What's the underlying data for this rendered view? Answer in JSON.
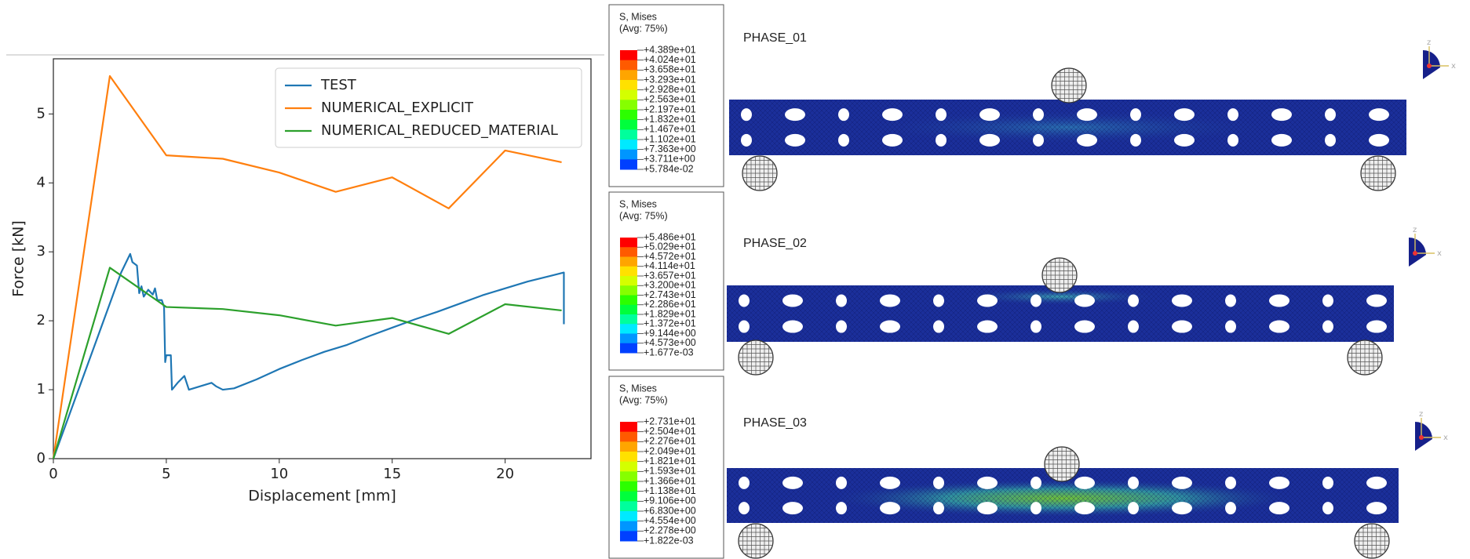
{
  "chart_data": {
    "type": "line",
    "xlabel": "Displacement [mm]",
    "ylabel": "Force [kN]",
    "xlim": [
      0,
      23.8
    ],
    "ylim": [
      0,
      5.8
    ],
    "xticks": [
      0,
      5,
      10,
      15,
      20
    ],
    "yticks": [
      0,
      1,
      2,
      3,
      4,
      5
    ],
    "grid": false,
    "legend": "upper-right",
    "series": [
      {
        "name": "TEST",
        "color": "#1f77b4",
        "x": [
          0,
          1,
          2,
          3,
          3.4,
          3.5,
          3.7,
          3.8,
          3.9,
          4,
          4.2,
          4.4,
          4.5,
          4.6,
          4.8,
          4.9,
          4.95,
          5,
          5.2,
          5.25,
          5.5,
          5.8,
          6,
          6.5,
          7,
          7.2,
          7.5,
          8,
          9,
          10,
          11,
          12,
          13,
          14,
          15,
          16,
          17,
          18,
          19,
          20,
          21,
          22,
          22.6,
          22.6
        ],
        "values": [
          0,
          0.9,
          1.8,
          2.7,
          2.97,
          2.85,
          2.8,
          2.4,
          2.5,
          2.35,
          2.45,
          2.38,
          2.47,
          2.3,
          2.3,
          2.2,
          1.4,
          1.5,
          1.5,
          1.0,
          1.1,
          1.2,
          1.0,
          1.05,
          1.1,
          1.05,
          1.0,
          1.02,
          1.15,
          1.3,
          1.43,
          1.55,
          1.65,
          1.78,
          1.9,
          2.02,
          2.13,
          2.25,
          2.37,
          2.47,
          2.57,
          2.65,
          2.7,
          1.95
        ]
      },
      {
        "name": "NUMERICAL_EXPLICIT",
        "color": "#ff7f0e",
        "x": [
          0,
          2.5,
          5,
          7.5,
          10,
          12.5,
          15,
          17.5,
          20,
          22.5
        ],
        "values": [
          0,
          5.55,
          4.4,
          4.35,
          4.15,
          3.87,
          4.08,
          3.63,
          4.47,
          4.3
        ]
      },
      {
        "name": "NUMERICAL_REDUCED_MATERIAL",
        "color": "#2ca02c",
        "x": [
          0,
          2.5,
          5,
          7.5,
          10,
          12.5,
          15,
          17.5,
          20,
          22.5
        ],
        "values": [
          0,
          2.77,
          2.2,
          2.17,
          2.08,
          1.93,
          2.04,
          1.81,
          2.24,
          2.15
        ]
      }
    ]
  },
  "panels": [
    {
      "label": "PHASE_01",
      "legend_title": "S, Mises",
      "legend_subtitle": "(Avg: 75%)",
      "levels": [
        "+4.389e+01",
        "+4.024e+01",
        "+3.658e+01",
        "+3.293e+01",
        "+2.928e+01",
        "+2.563e+01",
        "+2.197e+01",
        "+1.832e+01",
        "+1.467e+01",
        "+1.102e+01",
        "+7.363e+00",
        "+3.711e+00",
        "+5.784e-02"
      ]
    },
    {
      "label": "PHASE_02",
      "legend_title": "S, Mises",
      "legend_subtitle": "(Avg: 75%)",
      "levels": [
        "+5.486e+01",
        "+5.029e+01",
        "+4.572e+01",
        "+4.114e+01",
        "+3.657e+01",
        "+3.200e+01",
        "+2.743e+01",
        "+2.286e+01",
        "+1.829e+01",
        "+1.372e+01",
        "+9.144e+00",
        "+4.573e+00",
        "+1.677e-03"
      ]
    },
    {
      "label": "PHASE_03",
      "legend_title": "S, Mises",
      "legend_subtitle": "(Avg: 75%)",
      "levels": [
        "+2.731e+01",
        "+2.504e+01",
        "+2.276e+01",
        "+2.049e+01",
        "+1.821e+01",
        "+1.593e+01",
        "+1.366e+01",
        "+1.138e+01",
        "+9.106e+00",
        "+6.830e+00",
        "+4.554e+00",
        "+2.278e+00",
        "+1.822e-03"
      ]
    }
  ],
  "axis_triad_labels": [
    "z",
    "x"
  ]
}
